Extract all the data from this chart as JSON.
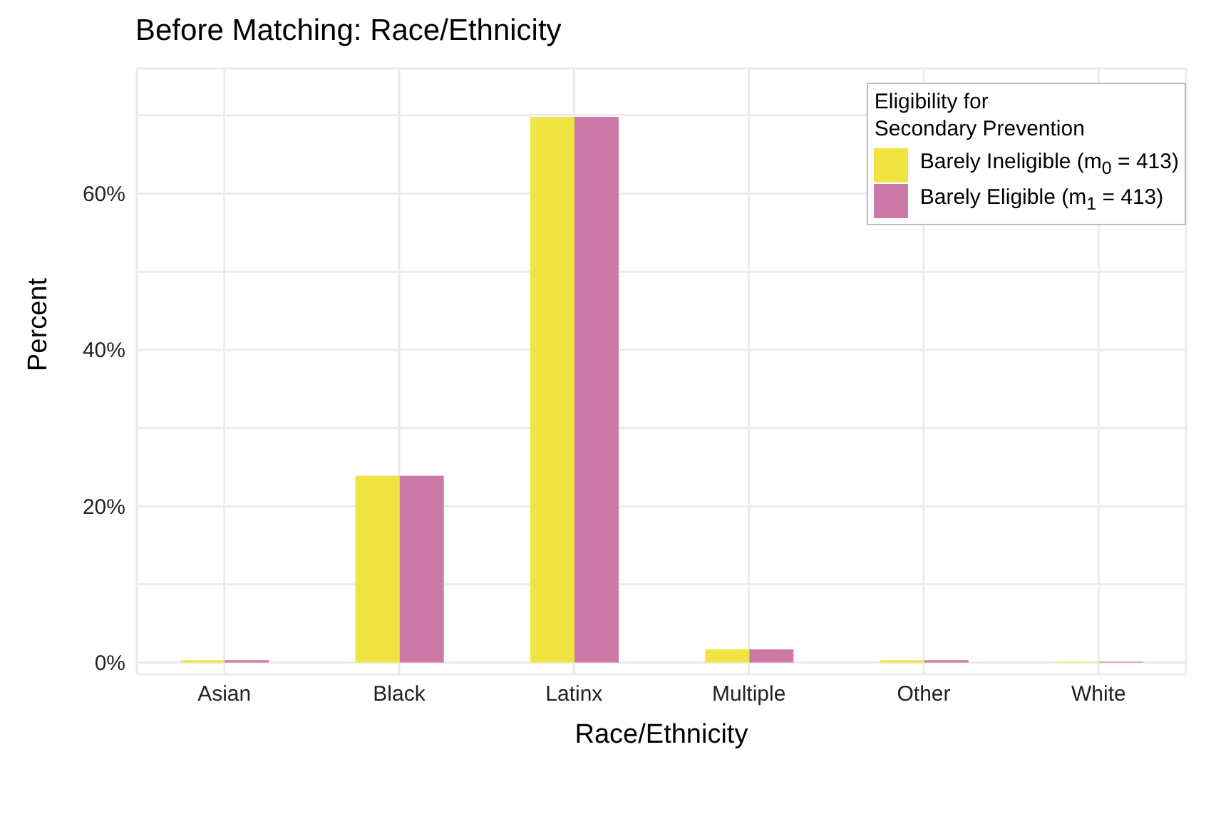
{
  "chart_data": {
    "type": "bar",
    "title": "Before Matching: Race/Ethnicity",
    "xlabel": "Race/Ethnicity",
    "ylabel": "Percent",
    "legend_title": "Eligibility for\nSecondary Prevention",
    "categories": [
      "Asian",
      "Black",
      "Latinx",
      "Multiple",
      "Other",
      "White"
    ],
    "series": [
      {
        "name": "Barely Ineligible (m$_{0}$ = 413)",
        "color": "#f0e442",
        "values": [
          0.3,
          23.9,
          69.8,
          1.7,
          0.3,
          0.1
        ]
      },
      {
        "name": "Barely Eligible (m$_{1}$ = 413)",
        "color": "#cc79a7",
        "values": [
          0.3,
          23.9,
          69.8,
          1.7,
          0.3,
          0.1
        ]
      }
    ],
    "ylim": [
      -1.5,
      76
    ],
    "yticks": [
      {
        "value": 0,
        "label": "0%"
      },
      {
        "value": 10,
        "label": null
      },
      {
        "value": 20,
        "label": "20%"
      },
      {
        "value": 30,
        "label": null
      },
      {
        "value": 40,
        "label": "40%"
      },
      {
        "value": 50,
        "label": null
      },
      {
        "value": 60,
        "label": "60%"
      },
      {
        "value": 70,
        "label": null
      }
    ],
    "grid": true,
    "legend": "top right"
  }
}
